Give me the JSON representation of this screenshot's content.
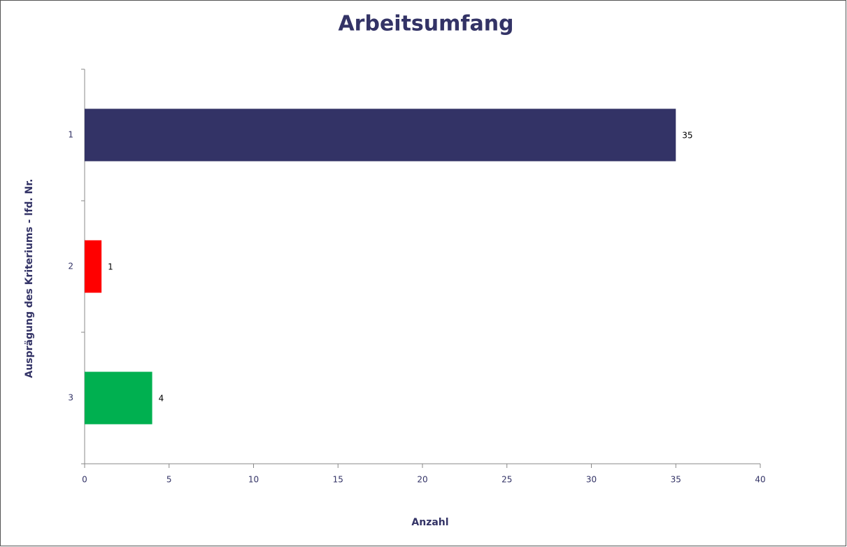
{
  "chart_data": {
    "type": "barh",
    "title": "Arbeitsumfang",
    "x_label": "Anzahl",
    "y_label": "Ausprägung des Kriteriums - lfd. Nr.",
    "categories": [
      "1",
      "2",
      "3"
    ],
    "values": [
      35,
      1,
      4
    ],
    "colors": [
      "#333366",
      "#ff0000",
      "#00b050"
    ],
    "xlim": [
      0,
      40
    ],
    "xticks": [
      0,
      5,
      10,
      15,
      20,
      25,
      30,
      35,
      40
    ],
    "grid": false
  }
}
